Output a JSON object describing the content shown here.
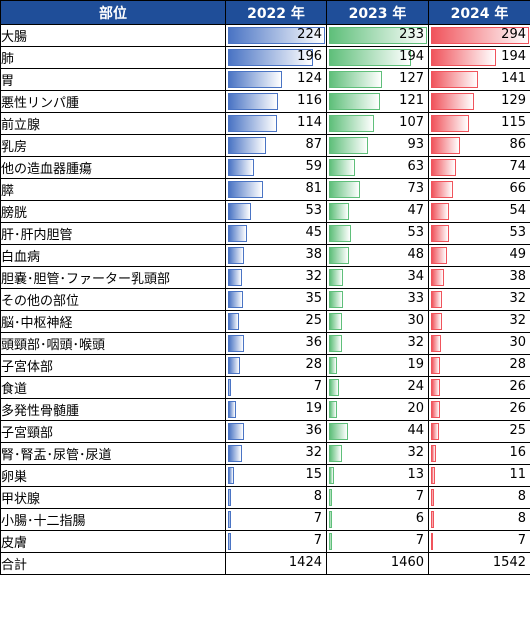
{
  "header": {
    "label": "部位",
    "y2022": "2022 年",
    "y2023": "2023 年",
    "y2024": "2024 年"
  },
  "max": {
    "y2022": 224,
    "y2023": 233,
    "y2024": 294
  },
  "colors": {
    "y2022": "#4a74c4",
    "y2023": "#5fbf7a",
    "y2024": "#f0545c",
    "header": "#1f4e99"
  },
  "rows": [
    {
      "label": "大腸",
      "y2022": 224,
      "y2023": 233,
      "y2024": 294
    },
    {
      "label": "肺",
      "y2022": 196,
      "y2023": 194,
      "y2024": 194
    },
    {
      "label": "胃",
      "y2022": 124,
      "y2023": 127,
      "y2024": 141
    },
    {
      "label": "悪性リンパ腫",
      "y2022": 116,
      "y2023": 121,
      "y2024": 129
    },
    {
      "label": "前立腺",
      "y2022": 114,
      "y2023": 107,
      "y2024": 115
    },
    {
      "label": "乳房",
      "y2022": 87,
      "y2023": 93,
      "y2024": 86
    },
    {
      "label": "他の造血器腫瘍",
      "y2022": 59,
      "y2023": 63,
      "y2024": 74
    },
    {
      "label": "膵",
      "y2022": 81,
      "y2023": 73,
      "y2024": 66
    },
    {
      "label": "膀胱",
      "y2022": 53,
      "y2023": 47,
      "y2024": 54
    },
    {
      "label": "肝･肝内胆管",
      "y2022": 45,
      "y2023": 53,
      "y2024": 53
    },
    {
      "label": "白血病",
      "y2022": 38,
      "y2023": 48,
      "y2024": 49
    },
    {
      "label": "胆嚢･胆管･ファーター乳頭部",
      "y2022": 32,
      "y2023": 34,
      "y2024": 38
    },
    {
      "label": "その他の部位",
      "y2022": 35,
      "y2023": 33,
      "y2024": 32
    },
    {
      "label": "脳･中枢神経",
      "y2022": 25,
      "y2023": 30,
      "y2024": 32
    },
    {
      "label": "頭頸部･咽頭･喉頭",
      "y2022": 36,
      "y2023": 32,
      "y2024": 30
    },
    {
      "label": "子宮体部",
      "y2022": 28,
      "y2023": 19,
      "y2024": 28
    },
    {
      "label": "食道",
      "y2022": 7,
      "y2023": 24,
      "y2024": 26
    },
    {
      "label": "多発性骨髄腫",
      "y2022": 19,
      "y2023": 20,
      "y2024": 26
    },
    {
      "label": "子宮頸部",
      "y2022": 36,
      "y2023": 44,
      "y2024": 25
    },
    {
      "label": "腎･腎盂･尿管･尿道",
      "y2022": 32,
      "y2023": 32,
      "y2024": 16
    },
    {
      "label": "卵巣",
      "y2022": 15,
      "y2023": 13,
      "y2024": 11
    },
    {
      "label": "甲状腺",
      "y2022": 8,
      "y2023": 7,
      "y2024": 8
    },
    {
      "label": "小腸･十二指腸",
      "y2022": 7,
      "y2023": 6,
      "y2024": 8
    },
    {
      "label": "皮膚",
      "y2022": 7,
      "y2023": 7,
      "y2024": 7
    }
  ],
  "total": {
    "label": "合計",
    "y2022": 1424,
    "y2023": 1460,
    "y2024": 1542
  }
}
